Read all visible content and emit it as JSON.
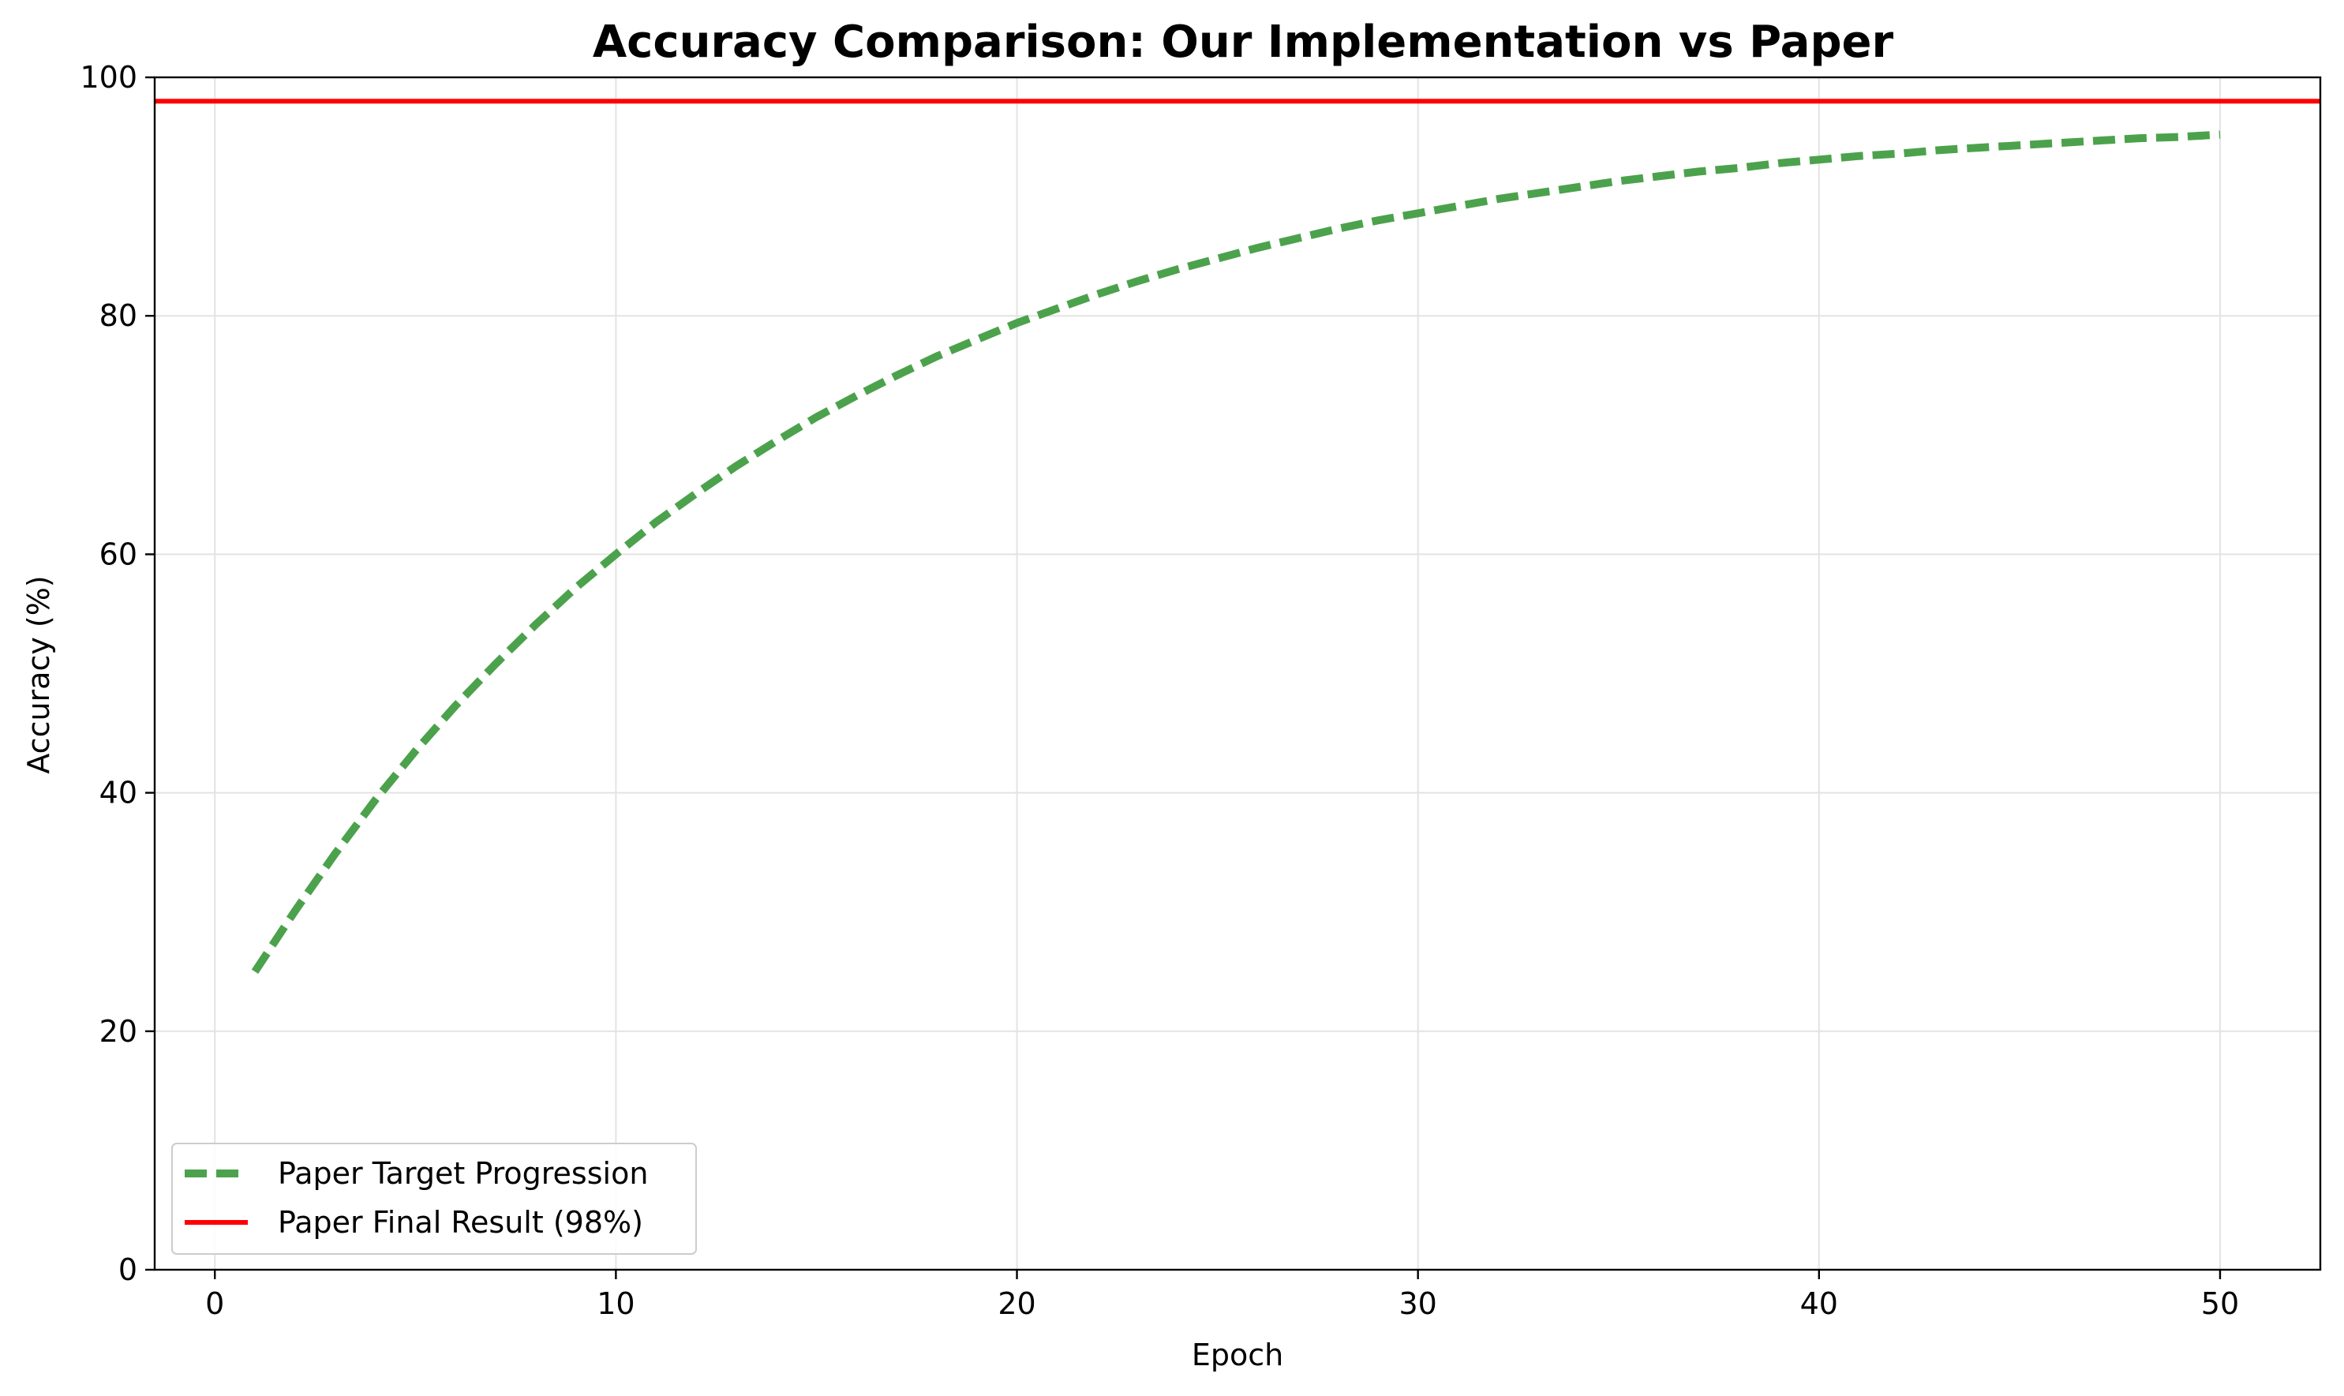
{
  "chart_data": {
    "type": "line",
    "title": "Accuracy Comparison: Our Implementation vs Paper",
    "xlabel": "Epoch",
    "ylabel": "Accuracy (%)",
    "xlim": [
      -1.5,
      52.5
    ],
    "ylim": [
      0,
      100
    ],
    "xticks": [
      0,
      10,
      20,
      30,
      40,
      50
    ],
    "yticks": [
      0,
      20,
      40,
      60,
      80,
      100
    ],
    "grid": true,
    "legend_position": "lower-left",
    "series": [
      {
        "name": "Paper Target Progression",
        "style": "dashed",
        "color": "#4ca24c",
        "x": [
          1,
          2,
          3,
          4,
          5,
          6,
          7,
          8,
          9,
          10,
          11,
          12,
          13,
          14,
          15,
          16,
          17,
          18,
          19,
          20,
          21,
          22,
          23,
          24,
          25,
          26,
          27,
          28,
          29,
          30,
          31,
          32,
          33,
          34,
          35,
          36,
          37,
          38,
          39,
          40,
          41,
          42,
          43,
          44,
          45,
          46,
          47,
          48,
          49,
          50
        ],
        "y": [
          25.0,
          30.1,
          34.9,
          39.4,
          43.5,
          47.3,
          50.8,
          54.1,
          57.2,
          60.0,
          62.7,
          65.1,
          67.4,
          69.5,
          71.5,
          73.3,
          75.0,
          76.6,
          78.0,
          79.4,
          80.6,
          81.8,
          82.9,
          83.9,
          84.8,
          85.7,
          86.5,
          87.3,
          88.0,
          88.6,
          89.2,
          89.8,
          90.3,
          90.8,
          91.3,
          91.7,
          92.1,
          92.4,
          92.8,
          93.1,
          93.4,
          93.6,
          93.9,
          94.1,
          94.3,
          94.5,
          94.7,
          94.9,
          95.0,
          95.2
        ]
      },
      {
        "name": "Paper Final Result (98%)",
        "style": "solid",
        "color": "#ff0000",
        "hline": 98
      }
    ]
  }
}
